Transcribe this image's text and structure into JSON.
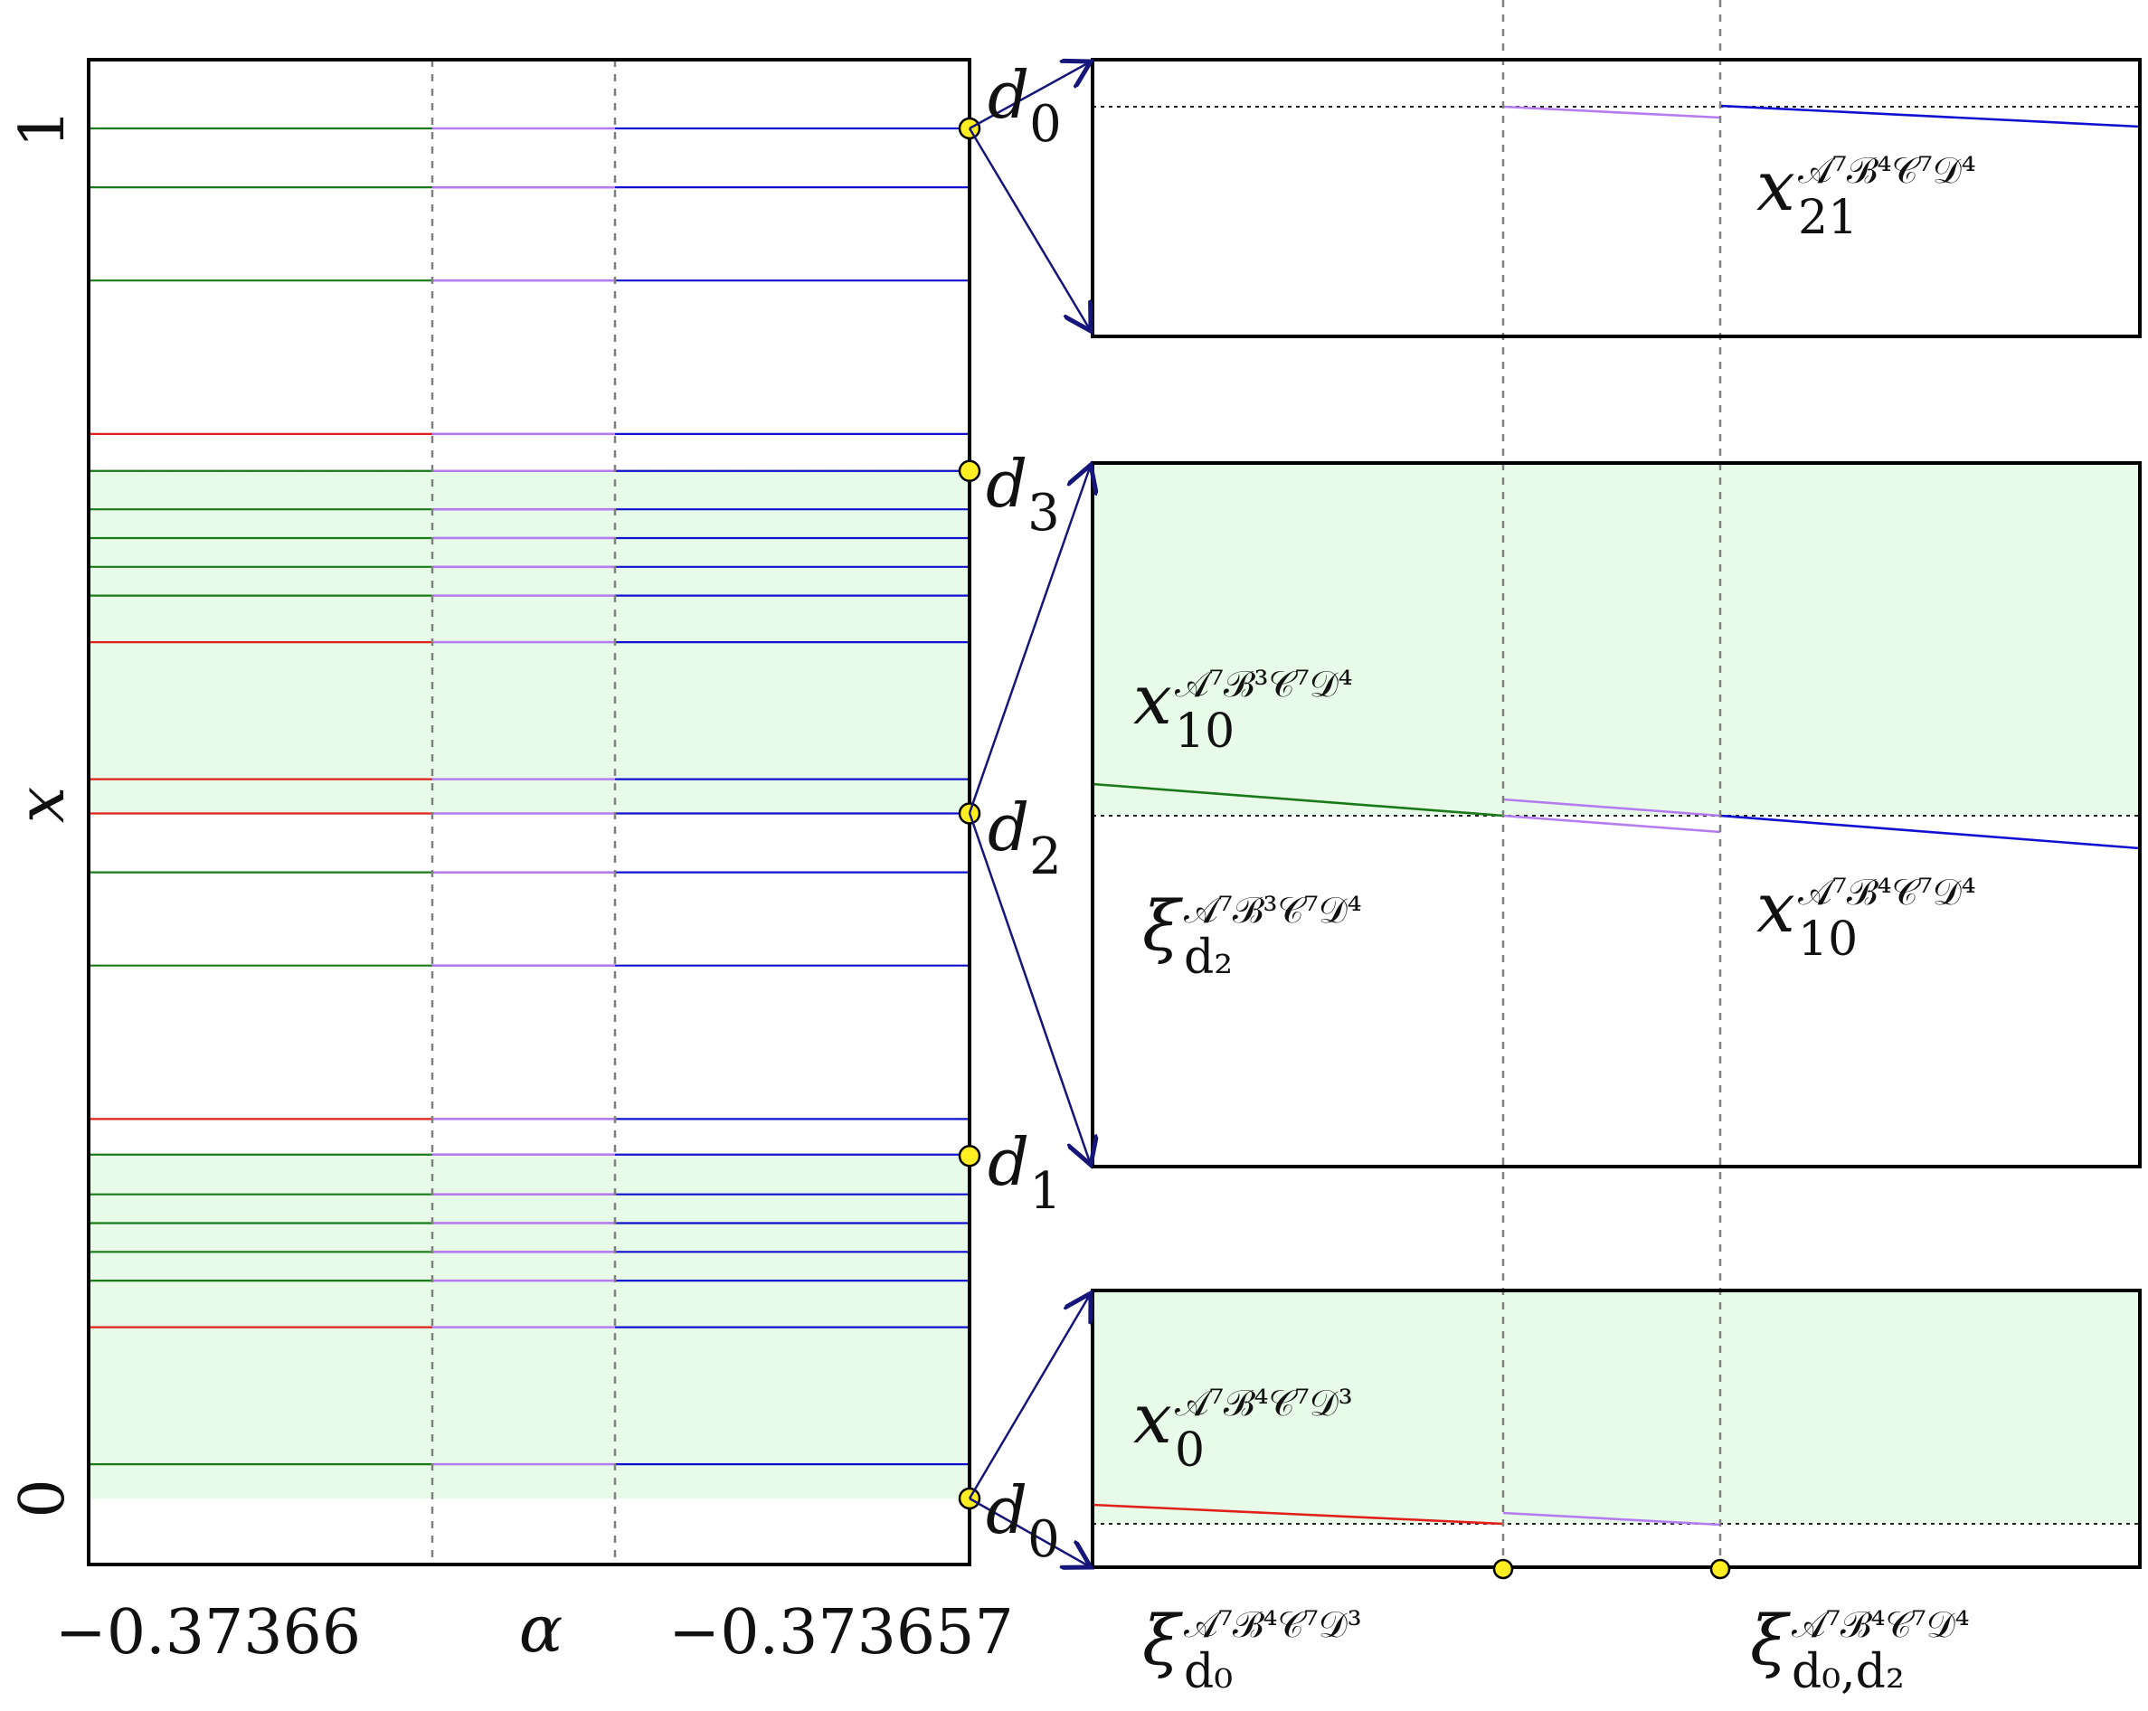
{
  "chart_data": {
    "type": "line",
    "main": {
      "xlabel": "α",
      "ylabel": "x",
      "x_tick_labels": [
        "−0.37366",
        "−0.373657"
      ],
      "y_tick_labels": [
        "0",
        "1"
      ],
      "ylim": [
        -0.05,
        1.05
      ],
      "shaded_bands": [
        [
          0.0,
          0.25
        ],
        [
          0.5,
          0.75
        ]
      ],
      "horizontal_levels": [
        0.025,
        0.125,
        0.159,
        0.18,
        0.201,
        0.222,
        0.251,
        0.277,
        0.389,
        0.457,
        0.5,
        0.525,
        0.625,
        0.659,
        0.68,
        0.701,
        0.722,
        0.75,
        0.777,
        0.889,
        0.957,
        1.0
      ],
      "red_start_levels": [
        0.0,
        0.125,
        0.277,
        0.525,
        0.625,
        0.777
      ],
      "markers": [
        {
          "label": "d",
          "sub": "0",
          "y": 0.0
        },
        {
          "label": "d",
          "sub": "1",
          "y": 0.25
        },
        {
          "label": "d",
          "sub": "2",
          "y": 0.5
        },
        {
          "label": "d",
          "sub": "3",
          "y": 0.75
        },
        {
          "label": "d",
          "sub": "0",
          "y": 1.0
        }
      ],
      "colors": {
        "green": "#1a7a1a",
        "red": "#e0201b",
        "violet": "#b57cf0",
        "blue": "#1010d0",
        "shade": "#e8fbe8",
        "marker": "#ffee22",
        "arrow": "#15157a"
      }
    },
    "insets": [
      {
        "name": "top",
        "labels": [
          {
            "base": "x",
            "sub": "21",
            "sup": "𝒜⁷ℬ⁴𝒞⁷𝒟⁴"
          }
        ]
      },
      {
        "name": "middle",
        "labels": [
          {
            "base": "x",
            "sub": "10",
            "sup": "𝒜⁷ℬ³𝒞⁷𝒟⁴"
          },
          {
            "base": "ξ",
            "sub": "d₂",
            "sup": "𝒜⁷ℬ³𝒞⁷𝒟⁴"
          },
          {
            "base": "x",
            "sub": "10",
            "sup": "𝒜⁷ℬ⁴𝒞⁷𝒟⁴"
          }
        ]
      },
      {
        "name": "bottom",
        "labels": [
          {
            "base": "x",
            "sub": "0",
            "sup": "𝒜⁷ℬ⁴𝒞⁷𝒟³"
          }
        ]
      }
    ],
    "inset_x_labels": [
      {
        "base": "ξ",
        "sub": "d₀",
        "sup": "𝒜⁷ℬ⁴𝒞⁷𝒟³"
      },
      {
        "base": "ξ",
        "sub": "d₀,d₂",
        "sup": "𝒜⁷ℬ⁴𝒞⁷𝒟⁴"
      }
    ]
  }
}
